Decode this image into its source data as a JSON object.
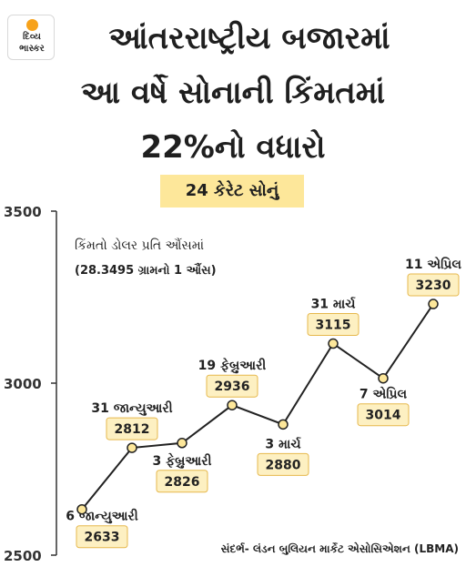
{
  "header": {
    "logo_line1": "દિવ્ય",
    "logo_line2": "ભાસ્કર",
    "title_line1": "આંતરરાષ્ટ્રીય બજારમાં",
    "title_line2": "આ વર્ષે સોનાની કિંમતમાં",
    "title_line3": "22%નો વધારો",
    "subtitle": "24 કેરેટ સોનું"
  },
  "notes": {
    "line1": "કિંમતો ડોલર પ્રતિ ઔંસમાં",
    "line2": "(28.3495 ગ્રામનો 1 ઔંસ)"
  },
  "source": "સંદર્ભ- લંડન બુલિયન માર્કેટ એસોસિએશન (LBMA)",
  "colors": {
    "line": "#222222",
    "marker_fill": "#fde79a",
    "label_box": "#fdf0c2",
    "label_border": "#e6b84c",
    "axis": "#333333"
  },
  "chart_data": {
    "type": "line",
    "x": [
      "6 જાન્યુઆરી",
      "31 જાન્યુઆરી",
      "3 ફેબ્રુઆરી",
      "19 ફેબ્રુઆરી",
      "3 માર્ચ",
      "31 માર્ચ",
      "7 એપ્રિલ",
      "11 એપ્રિલ"
    ],
    "values": [
      2633,
      2812,
      2826,
      2936,
      2880,
      3115,
      3014,
      3230
    ],
    "value_labels": [
      "2633",
      "2812",
      "2826",
      "2936",
      "2880",
      "3115",
      "3014",
      "3230"
    ],
    "yticks": [
      "2500",
      "3000",
      "3500"
    ],
    "ylim": [
      2500,
      3500
    ],
    "grid": false
  }
}
